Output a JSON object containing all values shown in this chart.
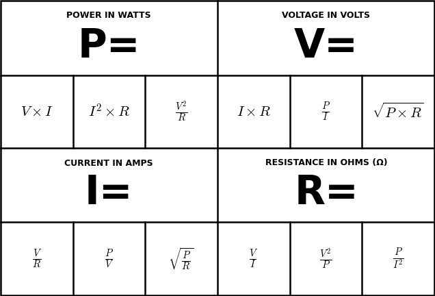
{
  "sections": [
    {
      "label": "POWER IN WATTS",
      "symbol": "P="
    },
    {
      "label": "VOLTAGE IN VOLTS",
      "symbol": "V="
    },
    {
      "label": "CURRENT IN AMPS",
      "symbol": "I="
    },
    {
      "label": "RESISTANCE IN OHMS (Ω)",
      "symbol": "R="
    }
  ],
  "formulas": {
    "power": [
      "$V \\times I$",
      "$I^2 \\times R$",
      "$\\frac{V^2}{R}$"
    ],
    "voltage": [
      "$I \\times R$",
      "$\\frac{P}{I}$",
      "$\\sqrt{P \\times R}$"
    ],
    "current": [
      "$\\frac{V}{R}$",
      "$\\frac{P}{V}$",
      "$\\sqrt{\\frac{P}{R}}$"
    ],
    "resistance": [
      "$\\frac{V}{I}$",
      "$\\frac{V^2}{P}$",
      "$\\frac{P}{I^2}$"
    ]
  },
  "bg_color": "#ffffff",
  "line_color": "#000000",
  "label_fontsize": 9,
  "symbol_fontsize": 42,
  "formula_fontsize": 15,
  "fig_width": 6.36,
  "fig_height": 4.32,
  "dpi": 100
}
